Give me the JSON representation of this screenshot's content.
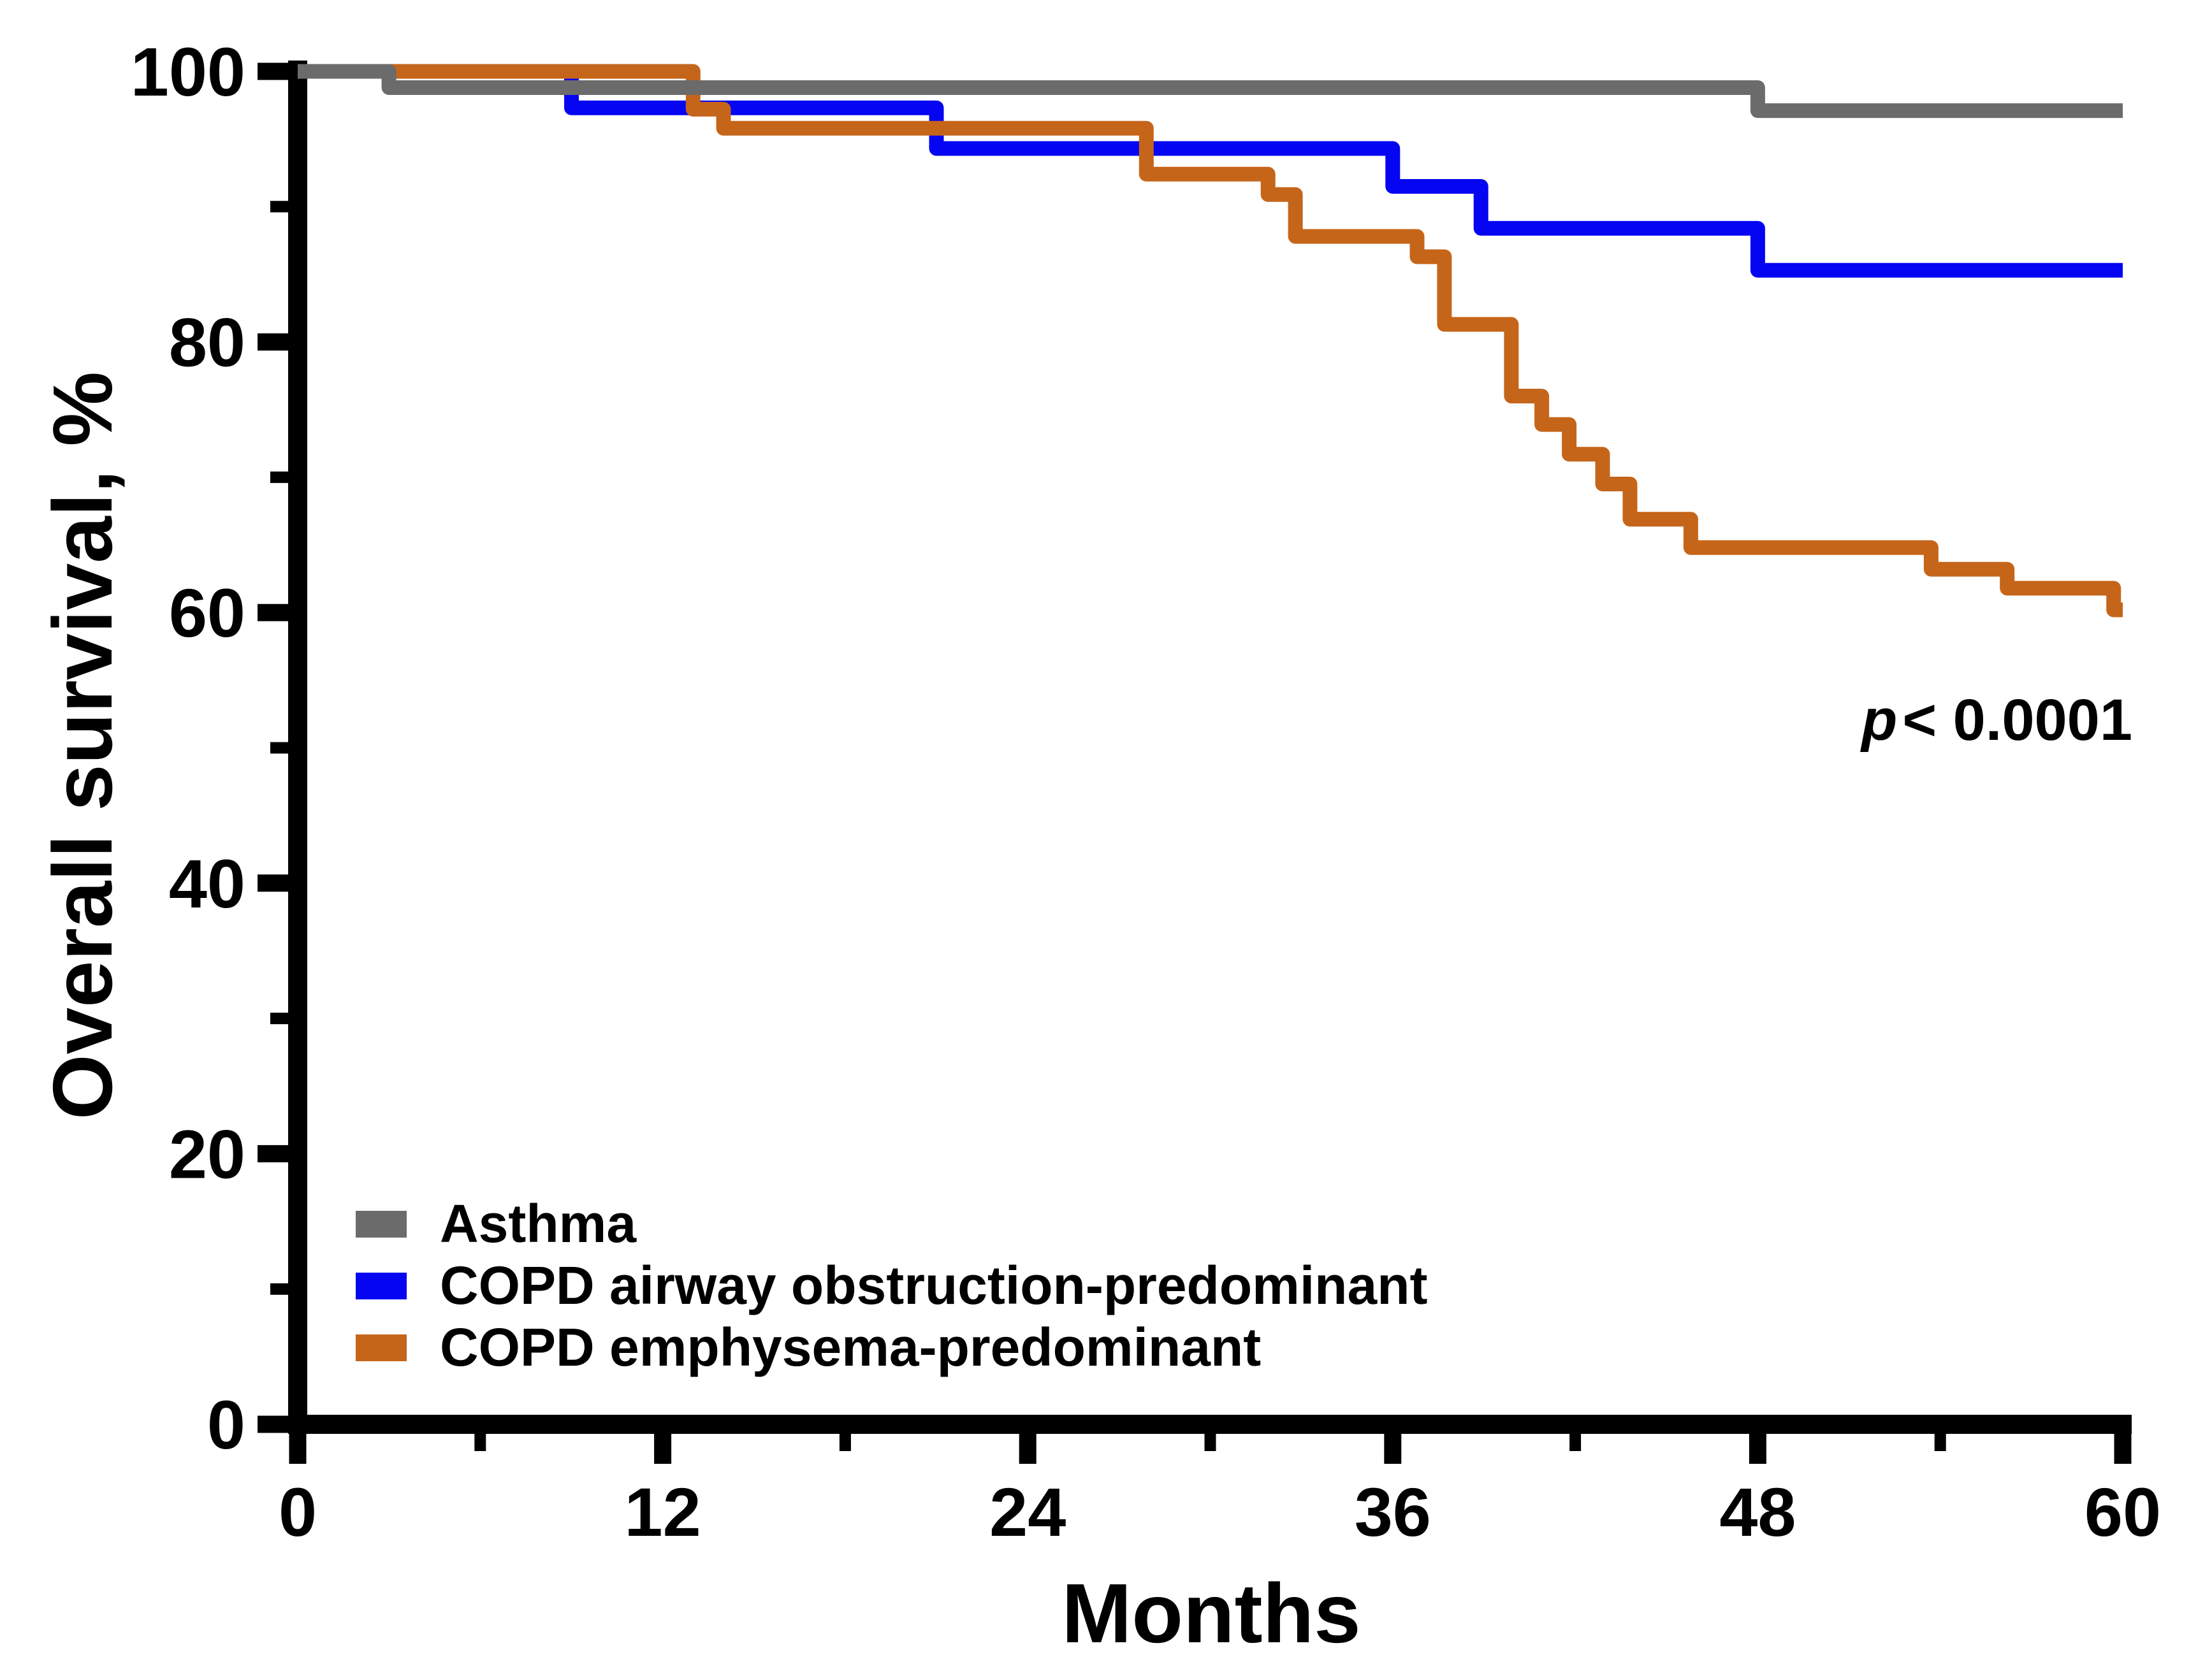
{
  "chart_data": {
    "type": "line",
    "subtype": "kaplan-meier-step",
    "title": "",
    "xlabel": "Months",
    "ylabel": "Overall survival, %",
    "xlim": [
      0,
      60
    ],
    "ylim": [
      0,
      100
    ],
    "x_ticks": [
      0,
      12,
      24,
      36,
      48,
      60
    ],
    "x_minor_ticks": [
      6,
      18,
      30,
      42,
      54
    ],
    "y_ticks": [
      0,
      20,
      40,
      60,
      80,
      100
    ],
    "y_minor_ticks": [
      10,
      30,
      50,
      70,
      90
    ],
    "grid": false,
    "legend_position": "inside-bottom-left",
    "style": {
      "background": "#ffffff",
      "axis_color": "#000000",
      "text_color": "#000000"
    },
    "series": [
      {
        "name": "Asthma",
        "color": "#6b6b6b",
        "draw_order": 3,
        "points": [
          [
            0,
            100
          ],
          [
            3,
            100
          ],
          [
            3,
            98.8
          ],
          [
            48,
            98.8
          ],
          [
            48,
            97.1
          ],
          [
            60,
            97.1
          ]
        ]
      },
      {
        "name": "COPD airway obstruction-predominant",
        "color": "#0505f2",
        "draw_order": 1,
        "points": [
          [
            0,
            100
          ],
          [
            9,
            100
          ],
          [
            9,
            97.3
          ],
          [
            21,
            97.3
          ],
          [
            21,
            94.3
          ],
          [
            36,
            94.3
          ],
          [
            36,
            91.5
          ],
          [
            38.9,
            91.5
          ],
          [
            38.9,
            88.4
          ],
          [
            48,
            88.4
          ],
          [
            48,
            85.3
          ],
          [
            60,
            85.3
          ]
        ]
      },
      {
        "name": "COPD emphysema-predominant",
        "color": "#c5651a",
        "draw_order": 2,
        "points": [
          [
            0,
            100
          ],
          [
            13,
            100
          ],
          [
            13,
            97.2
          ],
          [
            14,
            97.2
          ],
          [
            14,
            95.8
          ],
          [
            27.9,
            95.8
          ],
          [
            27.9,
            92.4
          ],
          [
            31.9,
            92.4
          ],
          [
            31.9,
            90.9
          ],
          [
            32.8,
            90.9
          ],
          [
            32.8,
            87.8
          ],
          [
            36.8,
            87.8
          ],
          [
            36.8,
            86.3
          ],
          [
            37.7,
            86.3
          ],
          [
            37.7,
            81.3
          ],
          [
            39.9,
            81.3
          ],
          [
            39.9,
            76.0
          ],
          [
            40.9,
            76.0
          ],
          [
            40.9,
            73.9
          ],
          [
            41.8,
            73.9
          ],
          [
            41.8,
            71.7
          ],
          [
            42.9,
            71.7
          ],
          [
            42.9,
            69.5
          ],
          [
            43.8,
            69.5
          ],
          [
            43.8,
            66.9
          ],
          [
            45.8,
            66.9
          ],
          [
            45.8,
            64.8
          ],
          [
            53.7,
            64.8
          ],
          [
            53.7,
            63.2
          ],
          [
            56.2,
            63.2
          ],
          [
            56.2,
            61.8
          ],
          [
            59.7,
            61.8
          ],
          [
            59.7,
            60.2
          ],
          [
            60,
            60.2
          ]
        ]
      }
    ],
    "annotation": "p < 0.0001"
  },
  "axis": {
    "y_title": "Overall survival, %",
    "x_title": "Months"
  },
  "annotation": {
    "p_italic": "p",
    "p_rest": "< 0.0001"
  }
}
